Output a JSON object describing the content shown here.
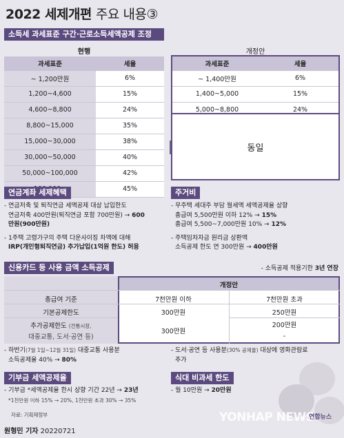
{
  "title": {
    "main": "2022 세제개편",
    "sub": "주요 내용",
    "num": "③"
  },
  "section1": {
    "band": "소득세 과세표준 구간·근로소득세액공제 조정",
    "current_label": "현행",
    "new_label": "개정안",
    "headers": [
      "과세표준",
      "세율"
    ],
    "current_rows": [
      [
        "~ 1,200만원",
        "6%"
      ],
      [
        "1,200~4,600",
        "15%"
      ],
      [
        "4,600~8,800",
        "24%"
      ],
      [
        "8,800~15,000",
        "35%"
      ],
      [
        "15,000~30,000",
        "38%"
      ],
      [
        "30,000~50,000",
        "40%"
      ],
      [
        "50,000~100,000",
        "42%"
      ],
      [
        "100,000~",
        "45%"
      ]
    ],
    "new_rows": [
      [
        "~ 1,400만원",
        "6%"
      ],
      [
        "1,400~5,000",
        "15%"
      ],
      [
        "5,000~8,800",
        "24%"
      ]
    ],
    "same_label": "동일"
  },
  "pension": {
    "tag": "연금계좌 세제혜택",
    "lines": [
      "- 연금저축 및 퇴직연금 세액공제 대상 납입한도",
      "연금저축 400만원(퇴직연금 포함 700만원) → ",
      "600만원(900만원)",
      "- 1주택 고령가구의 주택 다운사이징 차액에 대해",
      "IRP(개인형퇴직연금) 추가납입(1억원 한도) 허용"
    ],
    "bold1": "600",
    "bold2": "600만원(900만원)"
  },
  "housing": {
    "tag": "주거비",
    "lines": [
      "- 무주택 세대주 부담 월세액 세액공제율 상향",
      "총급여 5,500만원 이하 12% → ",
      "15%",
      "총급여 5,500~7,000만원 10% → ",
      "12%",
      "- 주택임차자금 원리금 상환액",
      "소득공제 한도 연 300만원 → ",
      "400만원"
    ]
  },
  "card": {
    "tag": "신용카드 등 사용 금액 소득공제",
    "note_prefix": "- 소득공제 적용기한 ",
    "note_bold": "3년 연장",
    "new_label": "개정안",
    "col_base": "총급여 기준",
    "col_a": "7천만원 이하",
    "col_b": "7천만원 초과",
    "row1_label": "기본공제한도",
    "row1_a": "300만원",
    "row1_b": "250만원",
    "row2_label": "추가공제한도",
    "row2_small": "(전통시장,",
    "row2_small2": "대중교통, 도서·공연 등)",
    "row2_a": "300만원",
    "row2_b": "200만원",
    "row2_b2": "-",
    "left_lines": [
      "- 하반기",
      "(7월 1일~12월 31일)",
      " 대중교통 사용분",
      "소득공제율 40% → ",
      "80%"
    ],
    "right_lines": [
      "- 도서·공연 등 사용분",
      "(30% 공제율)",
      " 대상에 영화관람료",
      "추가"
    ]
  },
  "donation": {
    "tag": "기부금 세액공제율",
    "line1": "- 기부금 *세액공제율 한시 상향 기간 22년 → ",
    "line1_bold": "23년",
    "line2": "*1천만원 이하 15% → 20%, 1천만원 초과 30% → 35%"
  },
  "meal": {
    "tag": "식대 비과세 한도",
    "line1": "- 월 10만원 → ",
    "line1_bold": "20만원"
  },
  "source": "자료: 기획재정부",
  "byline": "원형민 기자",
  "date": "20220721",
  "watermark": "YONHAP NEWS",
  "logo_text": "연합뉴스",
  "colors": {
    "purple": "#5b4a7e",
    "header": "#c9c3d7",
    "gray": "#dcd8e3"
  }
}
